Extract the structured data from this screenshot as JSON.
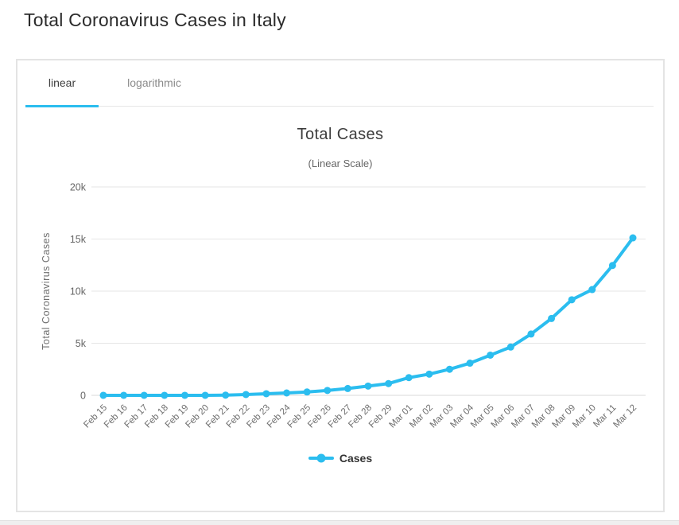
{
  "page": {
    "title": "Total Coronavirus Cases in Italy"
  },
  "tabs": [
    {
      "label": "linear",
      "active": true
    },
    {
      "label": "logarithmic",
      "active": false
    }
  ],
  "chart_data": {
    "type": "line",
    "title": "Total Cases",
    "subtitle": "(Linear Scale)",
    "xlabel": "",
    "ylabel": "Total Coronavirus Cases",
    "categories": [
      "Feb 15",
      "Feb 16",
      "Feb 17",
      "Feb 18",
      "Feb 19",
      "Feb 20",
      "Feb 21",
      "Feb 22",
      "Feb 23",
      "Feb 24",
      "Feb 25",
      "Feb 26",
      "Feb 27",
      "Feb 28",
      "Feb 29",
      "Mar 01",
      "Mar 02",
      "Mar 03",
      "Mar 04",
      "Mar 05",
      "Mar 06",
      "Mar 07",
      "Mar 08",
      "Mar 09",
      "Mar 10",
      "Mar 11",
      "Mar 12"
    ],
    "series": [
      {
        "name": "Cases",
        "color": "#2bbdef",
        "values": [
          3,
          3,
          3,
          3,
          3,
          4,
          21,
          79,
          157,
          229,
          323,
          470,
          655,
          889,
          1128,
          1701,
          2036,
          2502,
          3089,
          3858,
          4636,
          5883,
          7375,
          9172,
          10149,
          12462,
          15113
        ]
      }
    ],
    "ylim": [
      0,
      20000
    ],
    "yticks": [
      0,
      5000,
      10000,
      15000,
      20000
    ],
    "ytick_labels": [
      "0",
      "5k",
      "10k",
      "15k",
      "20k"
    ],
    "grid": "horizontal",
    "legend_position": "bottom"
  },
  "colors": {
    "accent": "#2bbdef",
    "grid_line": "#e6e6e6",
    "zero_line": "#d8d8d8",
    "axis_label": "#666666",
    "chart_title_text": "#3c3c3c",
    "page_title_text": "#2b2b2b",
    "card_border": "#e4e4e4",
    "inactive_tab_text": "#8a8a8a"
  }
}
